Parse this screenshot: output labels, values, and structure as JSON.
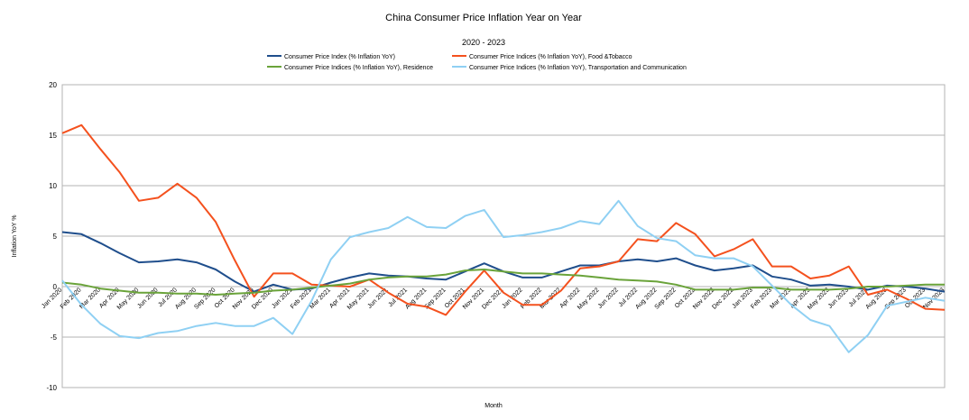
{
  "chart_data": {
    "type": "line",
    "title": "China Consumer Price Inflation Year on Year",
    "subtitle": "2020 - 2023",
    "xlabel": "Month",
    "ylabel": "Inflation YoY %",
    "ylim": [
      -10,
      20
    ],
    "yticks": [
      -10,
      -5,
      0,
      5,
      10,
      15,
      20
    ],
    "grid": "horizontal",
    "legend_position": "top",
    "categories": [
      "Jan 2020",
      "Feb 2020",
      "Mar 2020",
      "Apr 2020",
      "May 2020",
      "Jun 2020",
      "Jul 2020",
      "Aug 2020",
      "Sep 2020",
      "Oct 2020",
      "Nov 2020",
      "Dec 2020",
      "Jan 2021",
      "Feb 2021",
      "Mar 2021",
      "Apr 2021",
      "May 2021",
      "Jun 2021",
      "Jul 2021",
      "Aug 2021",
      "Sep 2021",
      "Oct 2021",
      "Nov 2021",
      "Dec 2021",
      "Jan 2022",
      "Feb 2022",
      "Mar 2022",
      "Apr 2022",
      "May 2022",
      "Jun 2022",
      "Jul 2022",
      "Aug 2022",
      "Sep 2022",
      "Oct 2022",
      "Nov 2022",
      "Dec 2022",
      "Jan 2023",
      "Feb 2023",
      "Mar 2023",
      "Apr 2023",
      "May 2023",
      "Jun 2023",
      "Jul 2023",
      "Aug 2023",
      "Sep 2023",
      "Oct 2023",
      "Nov 2023"
    ],
    "series": [
      {
        "name": "Consumer Price Index (% Inflation YoY)",
        "color": "#1f4e8c",
        "values": [
          5.4,
          5.2,
          4.3,
          3.3,
          2.4,
          2.5,
          2.7,
          2.4,
          1.7,
          0.5,
          -0.5,
          0.2,
          -0.3,
          -0.2,
          0.4,
          0.9,
          1.3,
          1.1,
          1.0,
          0.8,
          0.7,
          1.5,
          2.3,
          1.5,
          0.9,
          0.9,
          1.5,
          2.1,
          2.1,
          2.5,
          2.7,
          2.5,
          2.8,
          2.1,
          1.6,
          1.8,
          2.1,
          1.0,
          0.7,
          0.1,
          0.2,
          0.0,
          -0.3,
          0.1,
          0.0,
          -0.2,
          -0.5
        ]
      },
      {
        "name": "Consumer Price Indices (% Inflation YoY), Food &Tobacco",
        "color": "#f4511e",
        "values": [
          15.2,
          16.0,
          13.6,
          11.3,
          8.5,
          8.8,
          10.2,
          8.8,
          6.4,
          2.6,
          -1.0,
          1.3,
          1.3,
          0.2,
          0.1,
          0.0,
          0.7,
          -0.6,
          -1.7,
          -2.0,
          -2.8,
          -0.5,
          1.6,
          -0.6,
          -1.8,
          -1.8,
          -0.4,
          1.8,
          2.0,
          2.5,
          4.7,
          4.5,
          6.3,
          5.2,
          3.0,
          3.7,
          4.7,
          2.0,
          2.0,
          0.8,
          1.1,
          2.0,
          -0.8,
          -0.3,
          -1.2,
          -2.2,
          -2.3
        ]
      },
      {
        "name": "Consumer Price Indices (% Inflation YoY), Residence",
        "color": "#6aa33a",
        "values": [
          0.4,
          0.2,
          -0.2,
          -0.4,
          -0.6,
          -0.6,
          -0.7,
          -0.7,
          -0.8,
          -0.7,
          -0.6,
          -0.4,
          -0.3,
          -0.1,
          0.1,
          0.3,
          0.7,
          0.9,
          1.0,
          1.0,
          1.2,
          1.6,
          1.7,
          1.5,
          1.3,
          1.3,
          1.2,
          1.1,
          0.9,
          0.7,
          0.6,
          0.5,
          0.2,
          -0.3,
          -0.3,
          -0.3,
          -0.1,
          -0.1,
          -0.3,
          -0.3,
          -0.3,
          -0.2,
          0.0,
          0.0,
          0.1,
          0.2,
          0.2
        ]
      },
      {
        "name": "Consumer Price Indices (% Inflation YoY), Transportation and Communication",
        "color": "#8fd0f3",
        "values": [
          0.6,
          -1.8,
          -3.7,
          -4.9,
          -5.1,
          -4.6,
          -4.4,
          -3.9,
          -3.6,
          -3.9,
          -3.9,
          -3.1,
          -4.7,
          -1.4,
          2.7,
          4.9,
          5.4,
          5.8,
          6.9,
          5.9,
          5.8,
          7.0,
          7.6,
          4.9,
          5.1,
          5.4,
          5.8,
          6.5,
          6.2,
          8.5,
          6.0,
          4.8,
          4.5,
          3.1,
          2.8,
          2.8,
          2.0,
          0.1,
          -1.8,
          -3.3,
          -3.9,
          -6.5,
          -4.8,
          -1.9,
          -1.5,
          -1.1,
          -1.4
        ]
      }
    ]
  }
}
